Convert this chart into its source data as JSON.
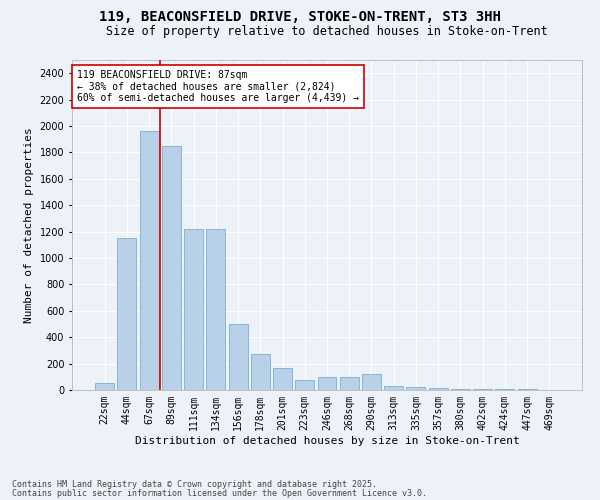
{
  "title": "119, BEACONSFIELD DRIVE, STOKE-ON-TRENT, ST3 3HH",
  "subtitle": "Size of property relative to detached houses in Stoke-on-Trent",
  "xlabel": "Distribution of detached houses by size in Stoke-on-Trent",
  "ylabel": "Number of detached properties",
  "categories": [
    "22sqm",
    "44sqm",
    "67sqm",
    "89sqm",
    "111sqm",
    "134sqm",
    "156sqm",
    "178sqm",
    "201sqm",
    "223sqm",
    "246sqm",
    "268sqm",
    "290sqm",
    "313sqm",
    "335sqm",
    "357sqm",
    "380sqm",
    "402sqm",
    "424sqm",
    "447sqm",
    "469sqm"
  ],
  "values": [
    50,
    1150,
    1960,
    1850,
    1220,
    1220,
    500,
    275,
    165,
    75,
    100,
    100,
    120,
    30,
    20,
    12,
    8,
    5,
    4,
    4,
    2
  ],
  "bar_color": "#b8d0e8",
  "bar_edge_color": "#7aafd4",
  "background_color": "#edf2f9",
  "grid_color": "#ffffff",
  "vline_color": "#cc0000",
  "vline_position": 2.5,
  "annotation_text": "119 BEACONSFIELD DRIVE: 87sqm\n← 38% of detached houses are smaller (2,824)\n60% of semi-detached houses are larger (4,439) →",
  "annotation_box_color": "#ffffff",
  "annotation_box_edge": "#cc0000",
  "footnote1": "Contains HM Land Registry data © Crown copyright and database right 2025.",
  "footnote2": "Contains public sector information licensed under the Open Government Licence v3.0.",
  "ylim": [
    0,
    2500
  ],
  "yticks": [
    0,
    200,
    400,
    600,
    800,
    1000,
    1200,
    1400,
    1600,
    1800,
    2000,
    2200,
    2400
  ],
  "title_fontsize": 10,
  "subtitle_fontsize": 8.5,
  "xlabel_fontsize": 8,
  "ylabel_fontsize": 8,
  "tick_fontsize": 7,
  "annot_fontsize": 7,
  "footnote_fontsize": 6
}
